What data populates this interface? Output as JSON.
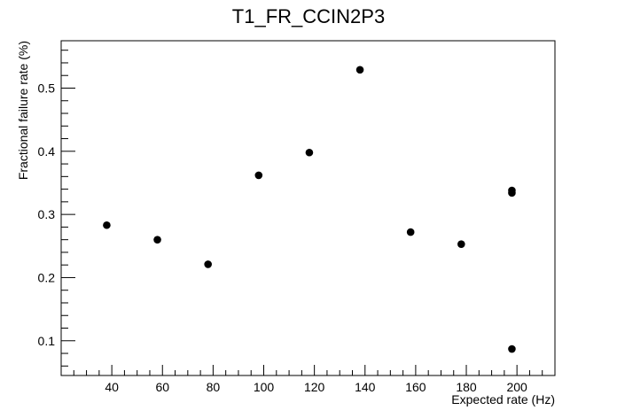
{
  "chart_data": {
    "type": "scatter",
    "title": "T1_FR_CCIN2P3",
    "xlabel": "Expected rate (Hz)",
    "ylabel": "Fractional failure rate (%)",
    "xlim": [
      20,
      215
    ],
    "ylim": [
      0.045,
      0.575
    ],
    "x_ticks": [
      40,
      60,
      80,
      100,
      120,
      140,
      160,
      180,
      200
    ],
    "y_ticks": [
      0.1,
      0.2,
      0.3,
      0.4,
      0.5
    ],
    "x_tick_labels": [
      "40",
      "60",
      "80",
      "100",
      "120",
      "140",
      "160",
      "180",
      "200"
    ],
    "y_tick_labels": [
      "0.1",
      "0.2",
      "0.3",
      "0.4",
      "0.5"
    ],
    "grid": false,
    "marker_color": "#000000",
    "points": [
      {
        "x": 38,
        "y": 0.283
      },
      {
        "x": 58,
        "y": 0.26
      },
      {
        "x": 78,
        "y": 0.221
      },
      {
        "x": 98,
        "y": 0.362
      },
      {
        "x": 118,
        "y": 0.398
      },
      {
        "x": 138,
        "y": 0.529
      },
      {
        "x": 158,
        "y": 0.272
      },
      {
        "x": 178,
        "y": 0.253
      },
      {
        "x": 198,
        "y": 0.338
      },
      {
        "x": 198,
        "y": 0.334
      },
      {
        "x": 198,
        "y": 0.087
      }
    ]
  }
}
